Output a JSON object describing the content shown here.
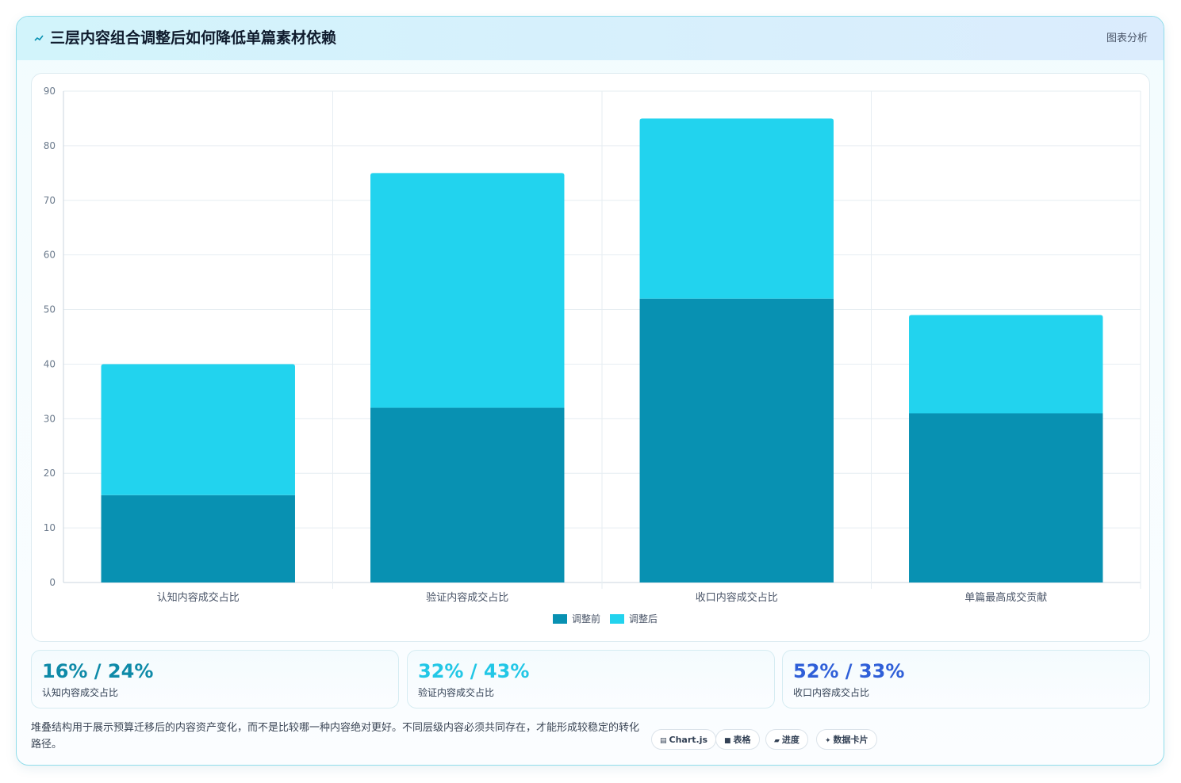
{
  "header": {
    "title": "三层内容组合调整后如何降低单篇素材依赖",
    "tag": "图表分析"
  },
  "chart_data": {
    "type": "bar",
    "stacked": true,
    "categories": [
      "认知内容成交占比",
      "验证内容成交占比",
      "收口内容成交占比",
      "单篇最高成交贡献"
    ],
    "series": [
      {
        "name": "调整前",
        "values": [
          16,
          32,
          52,
          31
        ],
        "color": "#0891b2"
      },
      {
        "name": "调整后",
        "values": [
          24,
          43,
          33,
          18
        ],
        "color": "#22d3ee"
      }
    ],
    "ylim": [
      0,
      90
    ],
    "yticks": [
      0,
      10,
      20,
      30,
      40,
      50,
      60,
      70,
      80,
      90
    ],
    "grid": true,
    "legend": "bottom"
  },
  "stats": [
    {
      "value": "16% / 24%",
      "label": "认知内容成交占比",
      "color": "#0e8aa8"
    },
    {
      "value": "32% / 43%",
      "label": "验证内容成交占比",
      "color": "#22c7e6"
    },
    {
      "value": "52% / 33%",
      "label": "收口内容成交占比",
      "color": "#2f5fd8"
    }
  ],
  "footnote": "堆叠结构用于展示预算迁移后的内容资产变化，而不是比较哪一种内容绝对更好。不同层级内容必须共同存在，才能形成较稳定的转化路径。",
  "pills": [
    {
      "icon": "table-icon",
      "glyph": "▤",
      "label": "Chart.js"
    },
    {
      "icon": "grid-icon",
      "glyph": "■",
      "label": "表格"
    },
    {
      "icon": "progress-icon",
      "glyph": "▰",
      "label": "进度"
    },
    {
      "icon": "sparkle-icon",
      "glyph": "✦",
      "label": "数据卡片"
    }
  ]
}
